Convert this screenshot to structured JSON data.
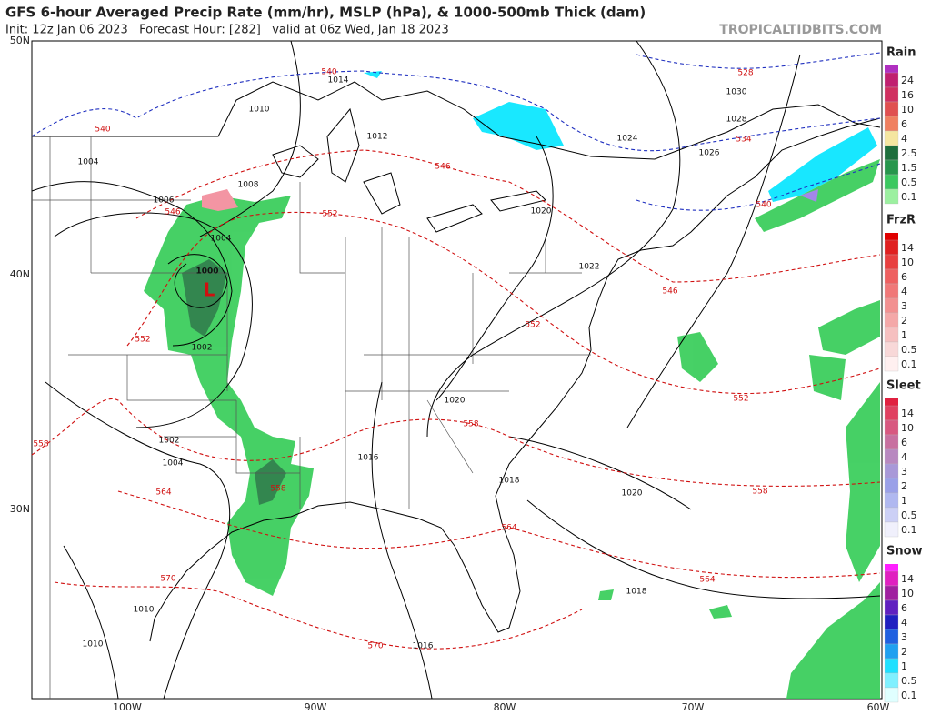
{
  "header": {
    "title": "GFS 6-hour Averaged Precip Rate (mm/hr), MSLP (hPa), & 1000-500mb Thick (dam)",
    "subtitle": "Init: 12z Jan 06 2023   Forecast Hour: [282]   valid at 06z Wed, Jan 18 2023",
    "site": "TROPICALTIDBITS.COM"
  },
  "map": {
    "lat_labels": [
      "50N",
      "40N",
      "30N"
    ],
    "lon_labels": [
      "100W",
      "90W",
      "80W",
      "70W",
      "60W"
    ],
    "low_symbol": "L",
    "isobar_labels": [
      "1014",
      "1010",
      "1012",
      "1008",
      "1006",
      "1004",
      "1004",
      "1000",
      "1002",
      "1002",
      "1004",
      "1030",
      "1028",
      "1024",
      "1026",
      "1020",
      "1022",
      "1020",
      "1016",
      "1018",
      "1020",
      "1018",
      "1016",
      "1010",
      "1010"
    ],
    "thickness_labels": [
      "540",
      "528",
      "534",
      "540",
      "540",
      "546",
      "546",
      "552",
      "546",
      "552",
      "552",
      "552",
      "558",
      "558",
      "558",
      "558",
      "564",
      "564",
      "564",
      "570",
      "570"
    ]
  },
  "legend": [
    {
      "title": "Rain",
      "levels": [
        "24",
        "16",
        "10",
        "6",
        "4",
        "2.5",
        "1.5",
        "0.5",
        "0.1"
      ]
    },
    {
      "title": "FrzR",
      "levels": [
        "14",
        "10",
        "6",
        "4",
        "3",
        "2",
        "1",
        "0.5",
        "0.1"
      ]
    },
    {
      "title": "Sleet",
      "levels": [
        "14",
        "10",
        "6",
        "4",
        "3",
        "2",
        "1",
        "0.5",
        "0.1"
      ]
    },
    {
      "title": "Snow",
      "levels": [
        "14",
        "10",
        "6",
        "4",
        "3",
        "2",
        "1",
        "0.5",
        "0.1"
      ]
    }
  ]
}
